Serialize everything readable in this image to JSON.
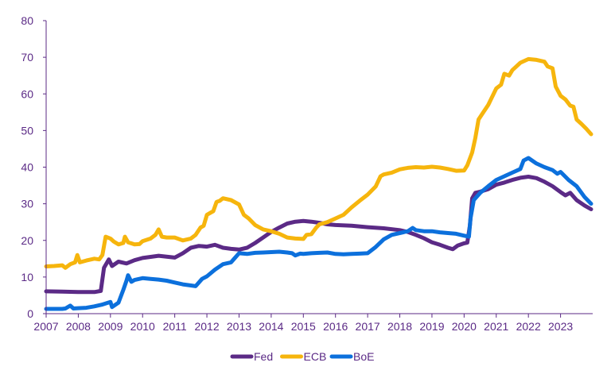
{
  "chart_data": {
    "type": "line",
    "title": "",
    "xlabel": "",
    "ylabel": "",
    "xlim": [
      2007,
      2024
    ],
    "ylim": [
      0,
      80
    ],
    "x_ticks": [
      "2007",
      "2008",
      "2009",
      "2010",
      "2011",
      "2012",
      "2013",
      "2014",
      "2015",
      "2016",
      "2017",
      "2018",
      "2019",
      "2020",
      "2021",
      "2022",
      "2023"
    ],
    "y_ticks": [
      "0",
      "10",
      "20",
      "30",
      "40",
      "50",
      "60",
      "70",
      "80"
    ],
    "grid": false,
    "legend_position": "bottom-center",
    "colors": {
      "axis": "#5b2a86",
      "text": "#5b2a86"
    },
    "series": [
      {
        "name": "Fed",
        "color": "#5b2a86",
        "points": [
          [
            2007.0,
            6.1
          ],
          [
            2007.5,
            6.0
          ],
          [
            2008.0,
            5.9
          ],
          [
            2008.5,
            5.9
          ],
          [
            2008.7,
            6.2
          ],
          [
            2008.8,
            12.5
          ],
          [
            2008.95,
            14.8
          ],
          [
            2009.05,
            13.0
          ],
          [
            2009.25,
            14.2
          ],
          [
            2009.5,
            13.7
          ],
          [
            2009.75,
            14.6
          ],
          [
            2010.0,
            15.2
          ],
          [
            2010.5,
            15.8
          ],
          [
            2011.0,
            15.3
          ],
          [
            2011.25,
            16.5
          ],
          [
            2011.5,
            18.0
          ],
          [
            2011.75,
            18.5
          ],
          [
            2012.0,
            18.3
          ],
          [
            2012.25,
            18.8
          ],
          [
            2012.5,
            18.0
          ],
          [
            2012.75,
            17.7
          ],
          [
            2013.0,
            17.5
          ],
          [
            2013.25,
            18.0
          ],
          [
            2013.5,
            19.3
          ],
          [
            2013.75,
            20.8
          ],
          [
            2014.0,
            22.3
          ],
          [
            2014.25,
            23.5
          ],
          [
            2014.5,
            24.6
          ],
          [
            2014.75,
            25.1
          ],
          [
            2015.0,
            25.3
          ],
          [
            2015.25,
            25.1
          ],
          [
            2015.5,
            24.8
          ],
          [
            2015.75,
            24.4
          ],
          [
            2016.0,
            24.2
          ],
          [
            2016.5,
            24.0
          ],
          [
            2017.0,
            23.6
          ],
          [
            2017.5,
            23.3
          ],
          [
            2018.0,
            22.8
          ],
          [
            2018.25,
            22.3
          ],
          [
            2018.5,
            21.5
          ],
          [
            2018.75,
            20.6
          ],
          [
            2019.0,
            19.5
          ],
          [
            2019.25,
            18.8
          ],
          [
            2019.5,
            18.0
          ],
          [
            2019.65,
            17.6
          ],
          [
            2019.8,
            18.6
          ],
          [
            2020.0,
            19.2
          ],
          [
            2020.1,
            19.4
          ],
          [
            2020.18,
            24.0
          ],
          [
            2020.25,
            31.5
          ],
          [
            2020.35,
            33.0
          ],
          [
            2020.5,
            33.3
          ],
          [
            2020.75,
            34.0
          ],
          [
            2021.0,
            35.2
          ],
          [
            2021.25,
            35.8
          ],
          [
            2021.5,
            36.5
          ],
          [
            2021.75,
            37.1
          ],
          [
            2022.0,
            37.4
          ],
          [
            2022.25,
            37.0
          ],
          [
            2022.5,
            36.0
          ],
          [
            2022.75,
            34.8
          ],
          [
            2023.0,
            33.2
          ],
          [
            2023.15,
            32.3
          ],
          [
            2023.3,
            33.0
          ],
          [
            2023.5,
            31.0
          ],
          [
            2023.75,
            29.5
          ],
          [
            2023.95,
            28.5
          ]
        ]
      },
      {
        "name": "ECB",
        "color": "#f6b50d",
        "points": [
          [
            2007.0,
            12.9
          ],
          [
            2007.25,
            13.0
          ],
          [
            2007.5,
            13.2
          ],
          [
            2007.6,
            12.5
          ],
          [
            2007.75,
            13.5
          ],
          [
            2007.9,
            14.0
          ],
          [
            2007.97,
            16.0
          ],
          [
            2008.05,
            14.0
          ],
          [
            2008.25,
            14.5
          ],
          [
            2008.5,
            15.0
          ],
          [
            2008.65,
            14.8
          ],
          [
            2008.75,
            16.0
          ],
          [
            2008.85,
            21.0
          ],
          [
            2009.0,
            20.5
          ],
          [
            2009.1,
            19.7
          ],
          [
            2009.25,
            18.9
          ],
          [
            2009.4,
            19.3
          ],
          [
            2009.45,
            21.0
          ],
          [
            2009.55,
            19.5
          ],
          [
            2009.75,
            18.9
          ],
          [
            2009.9,
            19.0
          ],
          [
            2010.0,
            19.8
          ],
          [
            2010.25,
            20.5
          ],
          [
            2010.4,
            21.5
          ],
          [
            2010.5,
            23.0
          ],
          [
            2010.6,
            21.0
          ],
          [
            2010.75,
            20.8
          ],
          [
            2011.0,
            20.8
          ],
          [
            2011.25,
            20.0
          ],
          [
            2011.5,
            20.5
          ],
          [
            2011.65,
            21.5
          ],
          [
            2011.8,
            23.5
          ],
          [
            2011.9,
            24.0
          ],
          [
            2012.0,
            27.0
          ],
          [
            2012.1,
            27.5
          ],
          [
            2012.2,
            28.0
          ],
          [
            2012.3,
            30.5
          ],
          [
            2012.4,
            30.8
          ],
          [
            2012.5,
            31.5
          ],
          [
            2012.75,
            31.0
          ],
          [
            2013.0,
            29.8
          ],
          [
            2013.15,
            27.0
          ],
          [
            2013.3,
            26.0
          ],
          [
            2013.5,
            24.2
          ],
          [
            2013.75,
            23.0
          ],
          [
            2014.0,
            22.5
          ],
          [
            2014.25,
            21.8
          ],
          [
            2014.5,
            20.8
          ],
          [
            2014.75,
            20.5
          ],
          [
            2015.0,
            20.4
          ],
          [
            2015.1,
            21.5
          ],
          [
            2015.25,
            21.7
          ],
          [
            2015.4,
            23.5
          ],
          [
            2015.5,
            24.4
          ],
          [
            2015.75,
            25.0
          ],
          [
            2016.0,
            26.0
          ],
          [
            2016.25,
            27.0
          ],
          [
            2016.5,
            29.0
          ],
          [
            2016.75,
            30.8
          ],
          [
            2017.0,
            32.5
          ],
          [
            2017.25,
            34.7
          ],
          [
            2017.4,
            37.5
          ],
          [
            2017.5,
            38.0
          ],
          [
            2017.75,
            38.5
          ],
          [
            2018.0,
            39.4
          ],
          [
            2018.25,
            39.8
          ],
          [
            2018.5,
            40.0
          ],
          [
            2018.75,
            39.9
          ],
          [
            2019.0,
            40.1
          ],
          [
            2019.25,
            39.9
          ],
          [
            2019.5,
            39.5
          ],
          [
            2019.75,
            39.0
          ],
          [
            2020.0,
            39.1
          ],
          [
            2020.1,
            40.5
          ],
          [
            2020.25,
            44.0
          ],
          [
            2020.35,
            48.0
          ],
          [
            2020.45,
            53.0
          ],
          [
            2020.6,
            55.0
          ],
          [
            2020.75,
            57.0
          ],
          [
            2021.0,
            61.5
          ],
          [
            2021.15,
            62.5
          ],
          [
            2021.25,
            65.5
          ],
          [
            2021.4,
            65.0
          ],
          [
            2021.5,
            66.5
          ],
          [
            2021.75,
            68.5
          ],
          [
            2022.0,
            69.5
          ],
          [
            2022.25,
            69.3
          ],
          [
            2022.5,
            68.8
          ],
          [
            2022.6,
            67.5
          ],
          [
            2022.75,
            67.0
          ],
          [
            2022.85,
            62.0
          ],
          [
            2023.0,
            59.5
          ],
          [
            2023.15,
            58.5
          ],
          [
            2023.3,
            56.8
          ],
          [
            2023.4,
            56.5
          ],
          [
            2023.5,
            53.0
          ],
          [
            2023.65,
            51.8
          ],
          [
            2023.8,
            50.5
          ],
          [
            2023.95,
            49.0
          ]
        ]
      },
      {
        "name": "BoE",
        "color": "#0c70dc",
        "points": [
          [
            2007.0,
            1.3
          ],
          [
            2007.25,
            1.3
          ],
          [
            2007.5,
            1.3
          ],
          [
            2007.6,
            1.4
          ],
          [
            2007.75,
            2.2
          ],
          [
            2007.85,
            1.4
          ],
          [
            2008.0,
            1.5
          ],
          [
            2008.25,
            1.6
          ],
          [
            2008.5,
            2.0
          ],
          [
            2008.75,
            2.5
          ],
          [
            2009.0,
            3.2
          ],
          [
            2009.05,
            1.8
          ],
          [
            2009.25,
            3.0
          ],
          [
            2009.4,
            6.5
          ],
          [
            2009.5,
            9.0
          ],
          [
            2009.55,
            10.5
          ],
          [
            2009.65,
            8.7
          ],
          [
            2009.75,
            9.2
          ],
          [
            2010.0,
            9.7
          ],
          [
            2010.25,
            9.5
          ],
          [
            2010.5,
            9.3
          ],
          [
            2010.75,
            9.0
          ],
          [
            2011.0,
            8.5
          ],
          [
            2011.25,
            8.0
          ],
          [
            2011.5,
            7.7
          ],
          [
            2011.65,
            7.5
          ],
          [
            2011.85,
            9.5
          ],
          [
            2012.0,
            10.2
          ],
          [
            2012.25,
            12.0
          ],
          [
            2012.5,
            13.5
          ],
          [
            2012.75,
            14.0
          ],
          [
            2012.85,
            15.0
          ],
          [
            2013.0,
            16.5
          ],
          [
            2013.25,
            16.3
          ],
          [
            2013.5,
            16.6
          ],
          [
            2013.75,
            16.7
          ],
          [
            2014.0,
            16.8
          ],
          [
            2014.25,
            16.9
          ],
          [
            2014.5,
            16.7
          ],
          [
            2014.65,
            16.5
          ],
          [
            2014.75,
            15.9
          ],
          [
            2014.9,
            16.4
          ],
          [
            2015.0,
            16.3
          ],
          [
            2015.25,
            16.5
          ],
          [
            2015.5,
            16.6
          ],
          [
            2015.75,
            16.7
          ],
          [
            2016.0,
            16.3
          ],
          [
            2016.25,
            16.2
          ],
          [
            2016.5,
            16.3
          ],
          [
            2016.75,
            16.4
          ],
          [
            2017.0,
            16.5
          ],
          [
            2017.25,
            18.2
          ],
          [
            2017.5,
            20.3
          ],
          [
            2017.75,
            21.5
          ],
          [
            2018.0,
            22.0
          ],
          [
            2018.25,
            22.5
          ],
          [
            2018.4,
            23.4
          ],
          [
            2018.5,
            22.8
          ],
          [
            2018.75,
            22.5
          ],
          [
            2019.0,
            22.5
          ],
          [
            2019.25,
            22.2
          ],
          [
            2019.5,
            22.0
          ],
          [
            2019.75,
            21.8
          ],
          [
            2020.0,
            21.3
          ],
          [
            2020.15,
            21.0
          ],
          [
            2020.2,
            26.0
          ],
          [
            2020.3,
            31.0
          ],
          [
            2020.5,
            33.0
          ],
          [
            2020.75,
            34.8
          ],
          [
            2021.0,
            36.5
          ],
          [
            2021.25,
            37.5
          ],
          [
            2021.5,
            38.5
          ],
          [
            2021.75,
            39.5
          ],
          [
            2021.85,
            41.8
          ],
          [
            2022.0,
            42.5
          ],
          [
            2022.25,
            41.0
          ],
          [
            2022.5,
            40.0
          ],
          [
            2022.75,
            39.2
          ],
          [
            2022.9,
            38.2
          ],
          [
            2023.0,
            38.7
          ],
          [
            2023.25,
            36.5
          ],
          [
            2023.5,
            34.8
          ],
          [
            2023.75,
            31.8
          ],
          [
            2023.95,
            30.0
          ]
        ]
      }
    ]
  }
}
